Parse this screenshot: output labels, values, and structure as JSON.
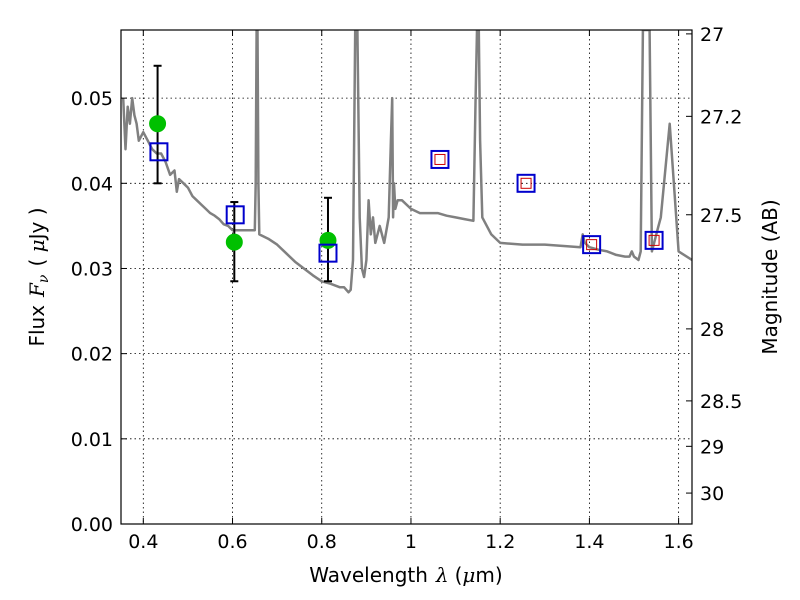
{
  "chart_data": {
    "type": "scatter",
    "xlabel_text": "Wavelength",
    "xlabel_symbol": "λ",
    "xlabel_unit_open": "(",
    "xlabel_unit_mu": "μ",
    "xlabel_unit_rest": "m)",
    "ylabel_text": "Flux",
    "ylabel_symbol_main": "F",
    "ylabel_symbol_sub": "ν",
    "ylabel_unit_open": "( ",
    "ylabel_unit_mu": "μ",
    "ylabel_unit_rest": "Jy )",
    "y2label": "Magnitude (AB)",
    "xlim": [
      0.35,
      1.63
    ],
    "ylim": [
      0.0,
      0.058
    ],
    "xticks": [
      0.4,
      0.6,
      0.8,
      1.0,
      1.2,
      1.4,
      1.6
    ],
    "xtick_labels": [
      "0.4",
      "0.6",
      "0.8",
      "1",
      "1.2",
      "1.4",
      "1.6"
    ],
    "yticks": [
      0.0,
      0.01,
      0.02,
      0.03,
      0.04,
      0.05
    ],
    "ytick_labels": [
      "0.00",
      "0.01",
      "0.02",
      "0.03",
      "0.04",
      "0.05"
    ],
    "y2ticks": [
      27,
      27.2,
      27.5,
      28,
      28.5,
      29,
      30
    ],
    "y2tick_labels": [
      "27",
      "27.2",
      "27.5",
      "28",
      "28.5",
      "29",
      "30"
    ],
    "grid": true,
    "series": [
      {
        "name": "model_spectrum",
        "kind": "line",
        "color": "#808080",
        "x": [
          0.355,
          0.36,
          0.365,
          0.37,
          0.375,
          0.38,
          0.385,
          0.39,
          0.4,
          0.41,
          0.42,
          0.43,
          0.44,
          0.45,
          0.46,
          0.47,
          0.475,
          0.48,
          0.49,
          0.5,
          0.51,
          0.52,
          0.53,
          0.54,
          0.55,
          0.56,
          0.57,
          0.58,
          0.59,
          0.6,
          0.62,
          0.64,
          0.65,
          0.652,
          0.654,
          0.656,
          0.658,
          0.66,
          0.68,
          0.7,
          0.72,
          0.74,
          0.76,
          0.78,
          0.8,
          0.82,
          0.84,
          0.85,
          0.86,
          0.865,
          0.87,
          0.875,
          0.88,
          0.885,
          0.89,
          0.895,
          0.9,
          0.905,
          0.91,
          0.915,
          0.92,
          0.93,
          0.94,
          0.95,
          0.955,
          0.958,
          0.96,
          0.962,
          0.965,
          0.97,
          0.98,
          1.0,
          1.02,
          1.04,
          1.06,
          1.08,
          1.1,
          1.12,
          1.14,
          1.145,
          1.148,
          1.15,
          1.152,
          1.155,
          1.16,
          1.18,
          1.2,
          1.25,
          1.3,
          1.35,
          1.38,
          1.385,
          1.39,
          1.4,
          1.42,
          1.44,
          1.46,
          1.48,
          1.49,
          1.495,
          1.5,
          1.51,
          1.515,
          1.52,
          1.525,
          1.53,
          1.535,
          1.54,
          1.545,
          1.55,
          1.555,
          1.56,
          1.58,
          1.6,
          1.63
        ],
        "y": [
          0.05,
          0.044,
          0.049,
          0.047,
          0.05,
          0.048,
          0.047,
          0.045,
          0.046,
          0.045,
          0.044,
          0.0435,
          0.0435,
          0.0425,
          0.041,
          0.0415,
          0.039,
          0.0405,
          0.04,
          0.0395,
          0.0385,
          0.038,
          0.0375,
          0.037,
          0.0365,
          0.0362,
          0.0358,
          0.0352,
          0.035,
          0.0345,
          0.0345,
          0.0345,
          0.0345,
          0.04,
          0.058,
          0.058,
          0.04,
          0.034,
          0.0335,
          0.0328,
          0.0318,
          0.0308,
          0.03,
          0.0292,
          0.0285,
          0.0282,
          0.0278,
          0.0278,
          0.0272,
          0.0275,
          0.031,
          0.058,
          0.058,
          0.036,
          0.03,
          0.029,
          0.031,
          0.038,
          0.034,
          0.036,
          0.033,
          0.035,
          0.033,
          0.036,
          0.045,
          0.05,
          0.036,
          0.04,
          0.037,
          0.038,
          0.038,
          0.037,
          0.0365,
          0.0365,
          0.0365,
          0.0362,
          0.036,
          0.0358,
          0.0356,
          0.05,
          0.058,
          0.058,
          0.058,
          0.045,
          0.036,
          0.034,
          0.033,
          0.0328,
          0.0328,
          0.0326,
          0.0325,
          0.034,
          0.033,
          0.0325,
          0.0322,
          0.032,
          0.0316,
          0.0314,
          0.0314,
          0.032,
          0.0314,
          0.031,
          0.032,
          0.058,
          0.058,
          0.058,
          0.058,
          0.032,
          0.033,
          0.034,
          0.035,
          0.036,
          0.047,
          0.032,
          0.031
        ]
      },
      {
        "name": "observed_photometry",
        "kind": "points",
        "marker": "circle",
        "color": "#00c000",
        "x": [
          0.432,
          0.604,
          0.814
        ],
        "y": [
          0.047,
          0.0331,
          0.0333
        ],
        "yerr_low": [
          0.04,
          0.0285,
          0.0285
        ],
        "yerr_high": [
          0.0538,
          0.0378,
          0.0383
        ]
      },
      {
        "name": "model_photometry",
        "kind": "points",
        "marker": "square",
        "color": "#0000cc",
        "x": [
          0.435,
          0.606,
          0.814,
          1.065,
          1.258,
          1.405,
          1.545
        ],
        "y": [
          0.0437,
          0.0363,
          0.0318,
          0.0428,
          0.04,
          0.0328,
          0.0333
        ]
      },
      {
        "name": "predicted_small",
        "kind": "points",
        "marker": "square",
        "color": "#cc0000",
        "x": [
          1.065,
          1.258,
          1.405,
          1.545
        ],
        "y": [
          0.0428,
          0.04,
          0.0328,
          0.0333
        ]
      }
    ]
  }
}
